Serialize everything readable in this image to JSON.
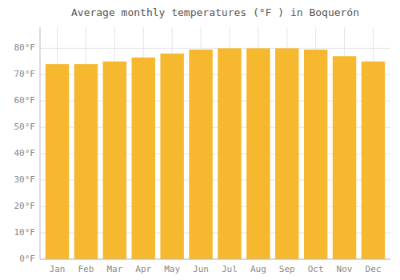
{
  "chart_data": {
    "type": "bar",
    "title": "Average monthly temperatures (°F ) in Boquerón",
    "categories": [
      "Jan",
      "Feb",
      "Mar",
      "Apr",
      "May",
      "Jun",
      "Jul",
      "Aug",
      "Sep",
      "Oct",
      "Nov",
      "Dec"
    ],
    "values": [
      74,
      74,
      75,
      76.5,
      78,
      79.5,
      80,
      80,
      80,
      79.5,
      77,
      75
    ],
    "color": "#F5B82E",
    "ylim": [
      0,
      88
    ],
    "yticks": [
      {
        "value": 0,
        "label": "0°F"
      },
      {
        "value": 10,
        "label": "10°F"
      },
      {
        "value": 20,
        "label": "20°F"
      },
      {
        "value": 30,
        "label": "30°F"
      },
      {
        "value": 40,
        "label": "40°F"
      },
      {
        "value": 50,
        "label": "50°F"
      },
      {
        "value": 60,
        "label": "60°F"
      },
      {
        "value": 70,
        "label": "70°F"
      },
      {
        "value": 80,
        "label": "80°F"
      }
    ],
    "grid": true
  }
}
